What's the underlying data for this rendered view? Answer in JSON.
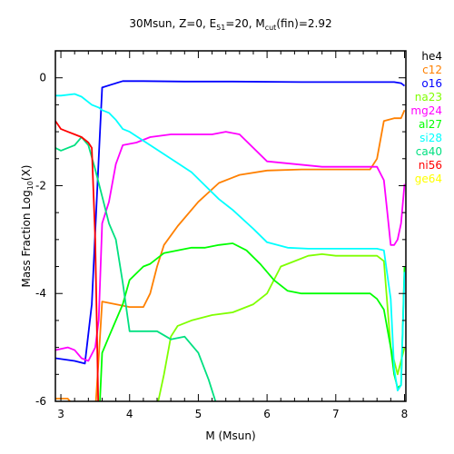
{
  "chart_data": {
    "type": "line",
    "title": {
      "parts": [
        {
          "text": "30Msun, Z=0, E",
          "sub": false
        },
        {
          "text": "51",
          "sub": true
        },
        {
          "text": "=20, M",
          "sub": false
        },
        {
          "text": "cut",
          "sub": true
        },
        {
          "text": "(fin)=2.92",
          "sub": false
        }
      ]
    },
    "xlabel": "M (Msun)",
    "ylabel": {
      "parts": [
        {
          "text": "Mass Fraction Log",
          "sub": false
        },
        {
          "text": "10",
          "sub": true
        },
        {
          "text": "(X)",
          "sub": false
        }
      ]
    },
    "xlim": [
      2.92,
      8.02
    ],
    "ylim": [
      -6,
      0.5
    ],
    "xticks": [
      3,
      4,
      5,
      6,
      7,
      8
    ],
    "yticks": [
      0,
      -2,
      -4,
      -6
    ],
    "grid": false,
    "legend_position": "right",
    "series": [
      {
        "name": "he4",
        "color": "#000000",
        "x": [],
        "y": []
      },
      {
        "name": "c12",
        "color": "#ff8000",
        "x": [
          2.92,
          3.1,
          3.2,
          3.3,
          3.4,
          3.5,
          3.55,
          3.6,
          3.8,
          4.0,
          4.2,
          4.3,
          4.4,
          4.5,
          4.7,
          5.0,
          5.3,
          5.6,
          6.0,
          6.5,
          7.0,
          7.5,
          7.6,
          7.7,
          7.85,
          7.95,
          8.0
        ],
        "y": [
          -5.95,
          -5.95,
          -6.1,
          -6.5,
          -6.5,
          -6.2,
          -5.2,
          -4.15,
          -4.2,
          -4.25,
          -4.25,
          -4.0,
          -3.5,
          -3.1,
          -2.75,
          -2.3,
          -1.95,
          -1.8,
          -1.72,
          -1.7,
          -1.7,
          -1.7,
          -1.5,
          -0.8,
          -0.75,
          -0.75,
          -0.6
        ]
      },
      {
        "name": "o16",
        "color": "#0000ff",
        "x": [
          2.92,
          3.2,
          3.35,
          3.45,
          3.55,
          3.6,
          3.75,
          3.9,
          4.2,
          4.8,
          5.5,
          6.5,
          7.5,
          7.85,
          7.95,
          8.0
        ],
        "y": [
          -5.2,
          -5.25,
          -5.3,
          -4.2,
          -1.5,
          -0.18,
          -0.12,
          -0.06,
          -0.06,
          -0.07,
          -0.07,
          -0.08,
          -0.08,
          -0.08,
          -0.1,
          -0.15
        ]
      },
      {
        "name": "na23",
        "color": "#7fff00",
        "x": [
          4.4,
          4.5,
          4.6,
          4.7,
          4.9,
          5.2,
          5.5,
          5.8,
          6.0,
          6.1,
          6.2,
          6.4,
          6.6,
          6.8,
          7.0,
          7.3,
          7.6,
          7.7,
          7.8,
          7.9,
          8.0
        ],
        "y": [
          -6.1,
          -5.5,
          -4.8,
          -4.6,
          -4.5,
          -4.4,
          -4.35,
          -4.2,
          -4.0,
          -3.75,
          -3.5,
          -3.4,
          -3.3,
          -3.27,
          -3.3,
          -3.3,
          -3.3,
          -3.4,
          -5.0,
          -5.5,
          -5.0
        ]
      },
      {
        "name": "mg24",
        "color": "#ff00ff",
        "x": [
          2.92,
          3.1,
          3.2,
          3.3,
          3.4,
          3.5,
          3.55,
          3.6,
          3.7,
          3.8,
          3.9,
          4.1,
          4.3,
          4.6,
          5.0,
          5.2,
          5.4,
          5.6,
          5.8,
          6.0,
          6.4,
          6.8,
          7.2,
          7.5,
          7.6,
          7.7,
          7.75,
          7.8,
          7.85,
          7.9,
          7.95,
          8.0
        ],
        "y": [
          -5.05,
          -5.0,
          -5.05,
          -5.2,
          -5.25,
          -5.0,
          -4.5,
          -2.7,
          -2.3,
          -1.6,
          -1.25,
          -1.2,
          -1.1,
          -1.05,
          -1.05,
          -1.05,
          -1.0,
          -1.05,
          -1.3,
          -1.55,
          -1.6,
          -1.65,
          -1.65,
          -1.65,
          -1.65,
          -1.9,
          -2.5,
          -3.1,
          -3.1,
          -3.0,
          -2.7,
          -1.97
        ]
      },
      {
        "name": "al27",
        "color": "#00ff00",
        "x": [
          3.55,
          3.6,
          3.7,
          3.8,
          3.9,
          4.0,
          4.2,
          4.3,
          4.5,
          4.7,
          4.9,
          5.1,
          5.3,
          5.5,
          5.7,
          5.9,
          6.1,
          6.3,
          6.5,
          6.8,
          7.0,
          7.3,
          7.5,
          7.6,
          7.7,
          7.8,
          7.85,
          7.9,
          7.95,
          8.0
        ],
        "y": [
          -6.5,
          -5.1,
          -4.8,
          -4.5,
          -4.2,
          -3.75,
          -3.5,
          -3.45,
          -3.25,
          -3.2,
          -3.15,
          -3.15,
          -3.1,
          -3.07,
          -3.2,
          -3.45,
          -3.75,
          -3.95,
          -4.0,
          -4.0,
          -4.0,
          -4.0,
          -4.0,
          -4.1,
          -4.3,
          -5.0,
          -5.5,
          -5.75,
          -5.7,
          -3.5
        ]
      },
      {
        "name": "si28",
        "color": "#00ffff",
        "x": [
          2.92,
          3.0,
          3.2,
          3.3,
          3.45,
          3.55,
          3.6,
          3.7,
          3.8,
          3.9,
          4.0,
          4.3,
          4.6,
          4.9,
          5.1,
          5.3,
          5.5,
          5.8,
          6.0,
          6.3,
          6.6,
          7.0,
          7.3,
          7.6,
          7.7,
          7.8,
          7.85,
          7.9,
          7.95,
          8.0
        ],
        "y": [
          -0.33,
          -0.33,
          -0.3,
          -0.35,
          -0.5,
          -0.55,
          -0.6,
          -0.65,
          -0.78,
          -0.95,
          -1.0,
          -1.25,
          -1.5,
          -1.75,
          -2.0,
          -2.25,
          -2.45,
          -2.8,
          -3.05,
          -3.15,
          -3.17,
          -3.17,
          -3.17,
          -3.17,
          -3.2,
          -4.1,
          -5.4,
          -5.8,
          -5.7,
          -3.6
        ]
      },
      {
        "name": "ca40",
        "color": "#00e080",
        "x": [
          2.92,
          3.0,
          3.2,
          3.3,
          3.4,
          3.5,
          3.6,
          3.7,
          3.8,
          3.9,
          4.0,
          4.2,
          4.4,
          4.6,
          4.8,
          5.0,
          5.15,
          5.3
        ],
        "y": [
          -1.3,
          -1.35,
          -1.25,
          -1.1,
          -1.25,
          -1.7,
          -2.2,
          -2.7,
          -3.0,
          -3.8,
          -4.7,
          -4.7,
          -4.7,
          -4.85,
          -4.8,
          -5.1,
          -5.6,
          -6.2
        ]
      },
      {
        "name": "ni56",
        "color": "#ff0000",
        "x": [
          2.92,
          3.0,
          3.1,
          3.2,
          3.3,
          3.4,
          3.45,
          3.5,
          3.55
        ],
        "y": [
          -0.8,
          -0.95,
          -1.0,
          -1.05,
          -1.1,
          -1.2,
          -1.3,
          -3.0,
          -6.5
        ]
      },
      {
        "name": "ge64",
        "color": "#ffff00",
        "x": [],
        "y": []
      }
    ]
  }
}
